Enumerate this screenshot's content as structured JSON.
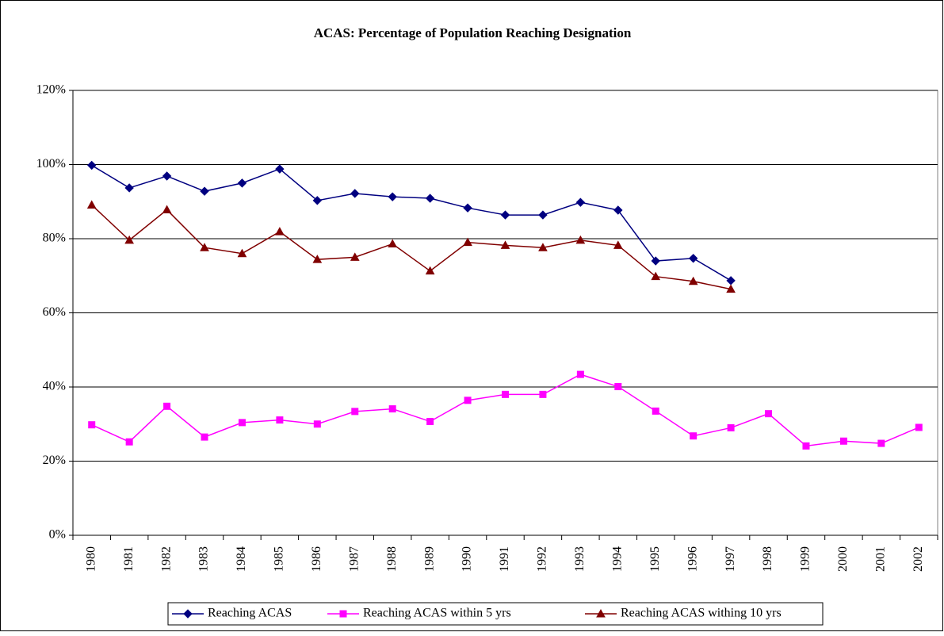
{
  "chart_data": {
    "type": "line",
    "title": "ACAS: Percentage of Population Reaching Designation",
    "categories": [
      "1980",
      "1981",
      "1982",
      "1983",
      "1984",
      "1985",
      "1986",
      "1987",
      "1988",
      "1989",
      "1990",
      "1991",
      "1992",
      "1993",
      "1994",
      "1995",
      "1996",
      "1997",
      "1998",
      "1999",
      "2000",
      "2001",
      "2002"
    ],
    "series": [
      {
        "name": "Reaching ACAS",
        "color": "#000080",
        "marker": "diamond",
        "values": [
          99.8,
          93.7,
          96.9,
          92.8,
          95.0,
          98.8,
          90.3,
          92.2,
          91.3,
          90.9,
          88.3,
          86.4,
          86.4,
          89.8,
          87.7,
          74.0,
          74.7,
          68.7,
          null,
          null,
          null,
          null,
          null
        ]
      },
      {
        "name": "Reaching ACAS within 5 yrs",
        "color": "#ff00ff",
        "marker": "square",
        "values": [
          29.8,
          25.2,
          34.8,
          26.5,
          30.4,
          31.1,
          30.0,
          33.4,
          34.1,
          30.7,
          36.4,
          38.0,
          38.0,
          43.4,
          40.1,
          33.5,
          26.8,
          29.0,
          32.8,
          24.1,
          25.4,
          24.8,
          29.1
        ]
      },
      {
        "name": "Reaching ACAS withing 10 yrs",
        "color": "#800000",
        "marker": "triangle",
        "values": [
          89.1,
          79.6,
          87.8,
          77.6,
          76.0,
          81.9,
          74.4,
          75.0,
          78.6,
          71.3,
          79.0,
          78.2,
          77.6,
          79.6,
          78.2,
          69.8,
          68.5,
          66.4,
          null,
          null,
          null,
          null,
          null
        ]
      }
    ],
    "ylim": [
      0,
      120
    ],
    "yticks": [
      {
        "value": 0,
        "label": "0%"
      },
      {
        "value": 20,
        "label": "20%"
      },
      {
        "value": 40,
        "label": "40%"
      },
      {
        "value": 60,
        "label": "60%"
      },
      {
        "value": 80,
        "label": "80%"
      },
      {
        "value": 100,
        "label": "100%"
      },
      {
        "value": 120,
        "label": "120%"
      }
    ],
    "grid": true,
    "legend": "bottom"
  }
}
